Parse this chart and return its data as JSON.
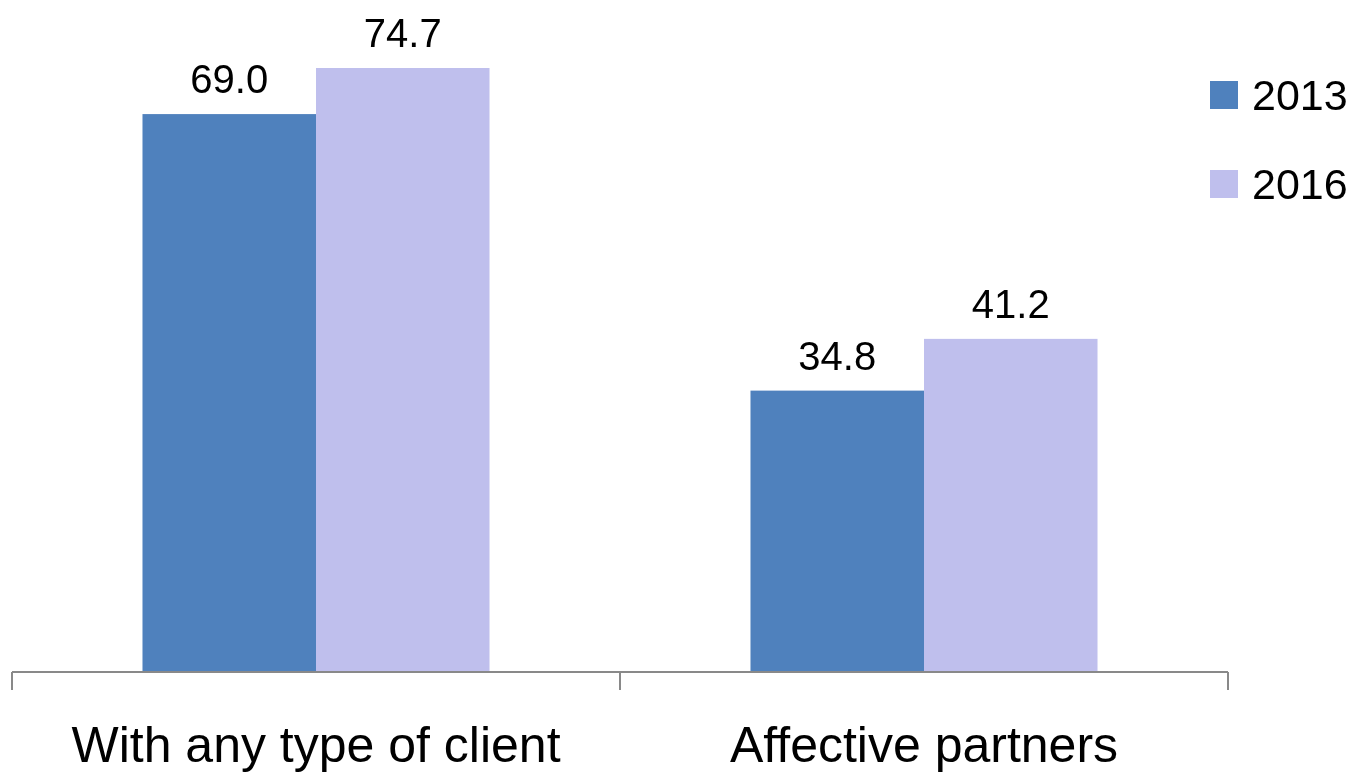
{
  "chart_data": {
    "type": "bar",
    "categories": [
      "With any type of client",
      "Affective partners"
    ],
    "series": [
      {
        "name": "2013",
        "color": "#4f81bd",
        "values": [
          69.0,
          34.8
        ],
        "value_labels": [
          "69.0",
          "34.8"
        ]
      },
      {
        "name": "2016",
        "color": "#bfbfed",
        "values": [
          74.7,
          41.2
        ],
        "value_labels": [
          "74.7",
          "41.2"
        ]
      }
    ],
    "legend": "top right"
  }
}
